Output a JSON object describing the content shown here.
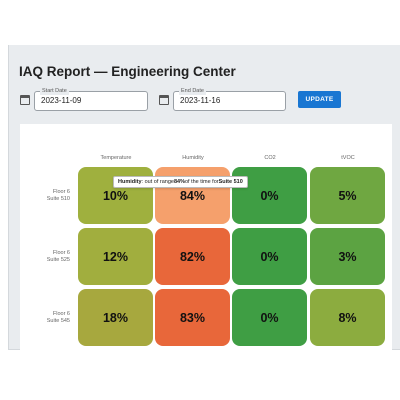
{
  "page": {
    "title": "IAQ Report — Engineering Center"
  },
  "filters": {
    "start_date": {
      "label": "Start Date",
      "value": "2023-11-09"
    },
    "end_date": {
      "label": "End Date",
      "value": "2023-11-16"
    },
    "update_label": "UPDATE"
  },
  "heatmap": {
    "columns": [
      "Temperature",
      "Humidity",
      "CO2",
      "tVOC"
    ],
    "rows": [
      {
        "floor": "Floor 6",
        "suite": "Suite 510",
        "cells": [
          "10%",
          "84%",
          "0%",
          "5%"
        ]
      },
      {
        "floor": "Floor 6",
        "suite": "Suite 525",
        "cells": [
          "12%",
          "82%",
          "0%",
          "3%"
        ]
      },
      {
        "floor": "Floor 6",
        "suite": "Suite 545",
        "cells": [
          "18%",
          "83%",
          "0%",
          "8%"
        ]
      }
    ]
  },
  "tooltip": {
    "metric": "Humidity",
    "text_before": ": out of range ",
    "value": "84%",
    "text_after": " of the time for ",
    "suite": "Suite 510"
  },
  "chart_data": {
    "type": "heatmap",
    "x": [
      "Temperature",
      "Humidity",
      "CO2",
      "tVOC"
    ],
    "y": [
      "Floor 6 Suite 510",
      "Floor 6 Suite 525",
      "Floor 6 Suite 545"
    ],
    "values": [
      [
        10,
        84,
        0,
        5
      ],
      [
        12,
        82,
        0,
        3
      ],
      [
        18,
        83,
        0,
        8
      ]
    ],
    "title": "",
    "colors": {
      "low": "#3f9e44",
      "mid": "#9fb03e",
      "high": "#e8673a",
      "hover_highlight": "#f5a06c"
    }
  },
  "colors": {
    "accent": "#1976d2",
    "header_bg": "#e9ecef"
  }
}
